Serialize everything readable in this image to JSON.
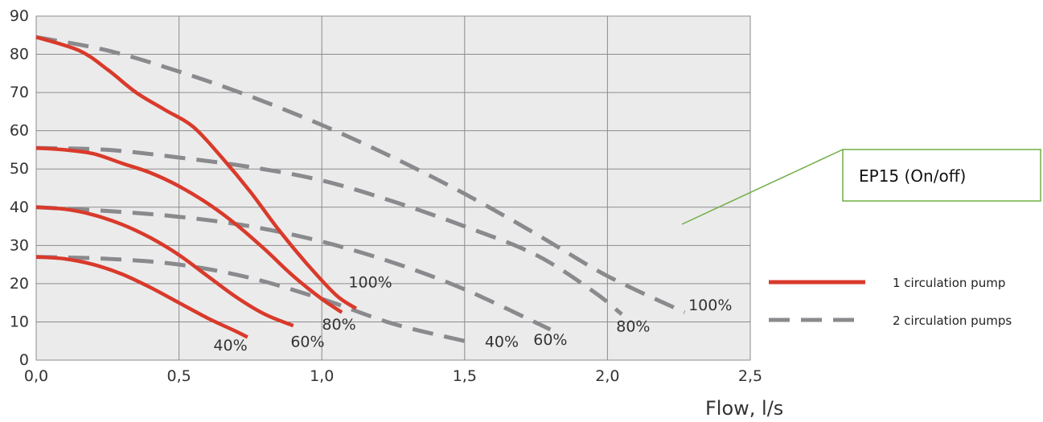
{
  "chart_data": {
    "type": "line",
    "xlabel": "Flow, l/s",
    "ylabel": "",
    "xlim": [
      0,
      2.5
    ],
    "ylim": [
      0,
      90
    ],
    "x_ticks": [
      "0,0",
      "0,5",
      "1,0",
      "1,5",
      "2,0",
      "2,5"
    ],
    "y_ticks": [
      "0",
      "10",
      "20",
      "30",
      "40",
      "50",
      "60",
      "70",
      "80",
      "90"
    ],
    "grid": true,
    "legend_position": "right",
    "series": [
      {
        "name": "1 circulation pump",
        "style": "solid",
        "color": "#d93a2b",
        "label": "100%",
        "points": [
          [
            0,
            84.5
          ],
          [
            0.15,
            81
          ],
          [
            0.25,
            76
          ],
          [
            0.35,
            70
          ],
          [
            0.45,
            65.5
          ],
          [
            0.55,
            61
          ],
          [
            0.65,
            53
          ],
          [
            0.75,
            44
          ],
          [
            0.85,
            34
          ],
          [
            0.95,
            25
          ],
          [
            1.05,
            17
          ],
          [
            1.12,
            13.5
          ]
        ]
      },
      {
        "name": "1 circulation pump",
        "style": "solid",
        "color": "#d93a2b",
        "label": "80%",
        "points": [
          [
            0,
            55.5
          ],
          [
            0.1,
            55
          ],
          [
            0.2,
            54
          ],
          [
            0.3,
            51.5
          ],
          [
            0.4,
            49
          ],
          [
            0.5,
            45.5
          ],
          [
            0.6,
            41
          ],
          [
            0.7,
            35.5
          ],
          [
            0.8,
            29
          ],
          [
            0.9,
            22
          ],
          [
            1.0,
            16
          ],
          [
            1.07,
            12.5
          ]
        ]
      },
      {
        "name": "1 circulation pump",
        "style": "solid",
        "color": "#d93a2b",
        "label": "60%",
        "points": [
          [
            0,
            40
          ],
          [
            0.1,
            39.5
          ],
          [
            0.2,
            38
          ],
          [
            0.3,
            35.5
          ],
          [
            0.4,
            32
          ],
          [
            0.5,
            27.5
          ],
          [
            0.6,
            22
          ],
          [
            0.7,
            16.5
          ],
          [
            0.8,
            12
          ],
          [
            0.9,
            9
          ]
        ]
      },
      {
        "name": "1 circulation pump",
        "style": "solid",
        "color": "#d93a2b",
        "label": "40%",
        "points": [
          [
            0,
            27
          ],
          [
            0.1,
            26.5
          ],
          [
            0.2,
            25
          ],
          [
            0.3,
            22.5
          ],
          [
            0.4,
            19
          ],
          [
            0.5,
            15
          ],
          [
            0.6,
            11
          ],
          [
            0.7,
            7.5
          ],
          [
            0.74,
            6
          ]
        ]
      },
      {
        "name": "2 circulation pumps",
        "style": "dashed",
        "color": "#8a8a8e",
        "label": "100%",
        "points": [
          [
            0,
            84.5
          ],
          [
            0.25,
            81
          ],
          [
            0.5,
            75.5
          ],
          [
            0.75,
            69
          ],
          [
            1.0,
            61.5
          ],
          [
            1.25,
            53
          ],
          [
            1.5,
            43.5
          ],
          [
            1.75,
            33
          ],
          [
            2.0,
            22
          ],
          [
            2.27,
            12.5
          ]
        ]
      },
      {
        "name": "2 circulation pumps",
        "style": "dashed",
        "color": "#8a8a8e",
        "label": "80%",
        "points": [
          [
            0,
            55.5
          ],
          [
            0.25,
            55
          ],
          [
            0.5,
            53
          ],
          [
            0.75,
            50.5
          ],
          [
            1.0,
            47
          ],
          [
            1.25,
            41.5
          ],
          [
            1.5,
            35
          ],
          [
            1.75,
            27.5
          ],
          [
            1.95,
            18
          ],
          [
            2.05,
            12
          ]
        ]
      },
      {
        "name": "2 circulation pumps",
        "style": "dashed",
        "color": "#8a8a8e",
        "label": "60%",
        "points": [
          [
            0,
            40
          ],
          [
            0.25,
            39
          ],
          [
            0.5,
            37.5
          ],
          [
            0.75,
            35
          ],
          [
            1.0,
            31
          ],
          [
            1.25,
            25.5
          ],
          [
            1.5,
            18.5
          ],
          [
            1.8,
            8
          ]
        ]
      },
      {
        "name": "2 circulation pumps",
        "style": "dashed",
        "color": "#8a8a8e",
        "label": "40%",
        "points": [
          [
            0,
            27
          ],
          [
            0.25,
            26.5
          ],
          [
            0.5,
            25
          ],
          [
            0.75,
            21.5
          ],
          [
            1.0,
            16
          ],
          [
            1.25,
            9.5
          ],
          [
            1.5,
            5
          ]
        ]
      }
    ],
    "curve_labels": [
      {
        "text": "100%",
        "x": 1.17,
        "y": 19
      },
      {
        "text": "80%",
        "x": 1.06,
        "y": 8
      },
      {
        "text": "60%",
        "x": 0.95,
        "y": 3.5
      },
      {
        "text": "40%",
        "x": 0.68,
        "y": 2.5
      },
      {
        "text": "100%",
        "x": 2.36,
        "y": 13
      },
      {
        "text": "80%",
        "x": 2.09,
        "y": 7.5
      },
      {
        "text": "60%",
        "x": 1.8,
        "y": 4
      },
      {
        "text": "40%",
        "x": 1.63,
        "y": 3.5
      }
    ],
    "legend": [
      {
        "label": "1 circulation pump",
        "style": "solid",
        "color": "#d93a2b"
      },
      {
        "label": "2 circulation pumps",
        "style": "dashed",
        "color": "#8a8a8e"
      }
    ],
    "annotations": [
      {
        "text": "EP15 (On/off)",
        "border_color": "#70ad47"
      }
    ]
  }
}
